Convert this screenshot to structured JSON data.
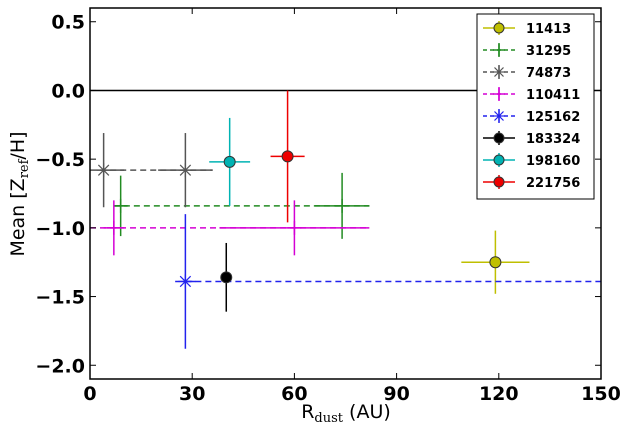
{
  "chart_data": {
    "type": "scatter",
    "xlabel_main": "R",
    "xlabel_sub": "dust",
    "xlabel_unit": " (AU)",
    "ylabel_main": "Mean [Z",
    "ylabel_sub": "ref",
    "ylabel_end": "/H]",
    "xlim": [
      0,
      150
    ],
    "ylim": [
      -2.1,
      0.6
    ],
    "xticks": [
      0,
      30,
      60,
      90,
      120,
      150
    ],
    "xtick_labels": [
      "0",
      "30",
      "60",
      "90",
      "120",
      "150"
    ],
    "yticks": [
      0.5,
      0.0,
      -0.5,
      -1.0,
      -1.5,
      -2.0
    ],
    "ytick_labels": [
      "0.5",
      "0.0",
      "−0.5",
      "−1.0",
      "−1.5",
      "−2.0"
    ],
    "reference_line_y": 0.0,
    "grid": false,
    "legend_position": "top-right",
    "series": [
      {
        "name": "11413",
        "color": "#bfbf00",
        "marker": "circle",
        "hline": false,
        "points": [
          {
            "x": 119,
            "y": -1.25,
            "xerr": [
              10,
              10
            ],
            "yerr": [
              0.23,
              0.23
            ]
          }
        ]
      },
      {
        "name": "31295",
        "color": "#228b22",
        "marker": "plus",
        "hline": true,
        "hline_range": [
          7,
          82
        ],
        "hline_y": -0.84,
        "points": [
          {
            "x": 9,
            "y": -0.84,
            "xerr": [
              2,
              2
            ],
            "yerr": [
              0.22,
              0.22
            ]
          },
          {
            "x": 74,
            "y": -0.84,
            "xerr": [
              8,
              8
            ],
            "yerr": [
              0.24,
              0.24
            ]
          }
        ]
      },
      {
        "name": "74873",
        "color": "#555555",
        "marker": "star",
        "hline": true,
        "hline_range": [
          3,
          36
        ],
        "hline_y": -0.58,
        "points": [
          {
            "x": 4,
            "y": -0.58,
            "xerr": [
              4,
              6
            ],
            "yerr": [
              0.27,
              0.27
            ]
          },
          {
            "x": 28,
            "y": -0.58,
            "xerr": [
              8,
              8
            ],
            "yerr": [
              0.27,
              0.27
            ]
          }
        ]
      },
      {
        "name": "110411",
        "color": "#d400d4",
        "marker": "plus",
        "hline": true,
        "hline_range": [
          0,
          82
        ],
        "hline_y": -1.0,
        "points": [
          {
            "x": 7,
            "y": -1.0,
            "xerr": [
              3,
              3
            ],
            "yerr": [
              0.2,
              0.2
            ]
          },
          {
            "x": 60,
            "y": -1.0,
            "xerr": [
              22,
              22
            ],
            "yerr": [
              0.2,
              0.2
            ]
          }
        ]
      },
      {
        "name": "125162",
        "color": "#2222ee",
        "marker": "star",
        "hline": true,
        "hline_range": [
          28,
          150
        ],
        "hline_y": -1.39,
        "points": [
          {
            "x": 28,
            "y": -1.39,
            "xerr": [
              3,
              3
            ],
            "yerr": [
              0.49,
              0.49
            ]
          }
        ]
      },
      {
        "name": "183324",
        "color": "#000000",
        "marker": "circle",
        "hline": false,
        "points": [
          {
            "x": 40,
            "y": -1.36,
            "xerr": [
              0,
              0
            ],
            "yerr": [
              0.25,
              0.25
            ]
          }
        ]
      },
      {
        "name": "198160",
        "color": "#00b3b3",
        "marker": "circle",
        "hline": false,
        "points": [
          {
            "x": 41,
            "y": -0.52,
            "xerr": [
              6,
              6
            ],
            "yerr": [
              0.32,
              0.32
            ]
          }
        ]
      },
      {
        "name": "221756",
        "color": "#ee0000",
        "marker": "circle",
        "hline": false,
        "points": [
          {
            "x": 58,
            "y": -0.48,
            "xerr": [
              5,
              5
            ],
            "yerr": [
              0.48,
              0.48
            ]
          }
        ]
      }
    ]
  }
}
